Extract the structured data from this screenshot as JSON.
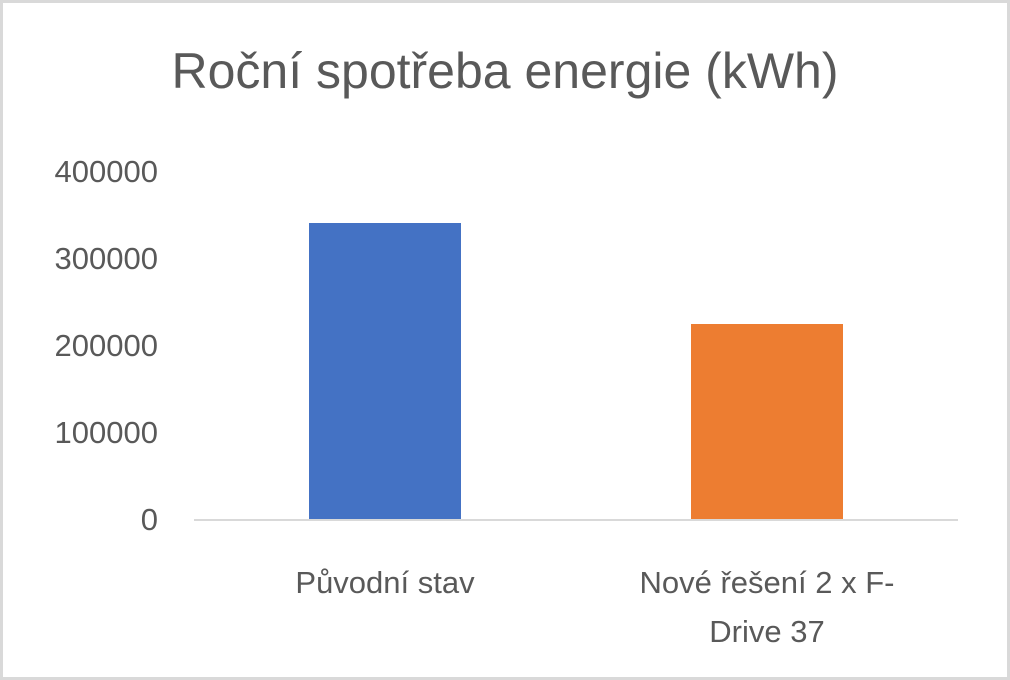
{
  "chart_data": {
    "type": "bar",
    "title": "Roční spotřeba energie (kWh)",
    "xlabel": "",
    "ylabel": "",
    "categories": [
      "Původní stav",
      "Nové řešení 2 x F-Drive 37"
    ],
    "category_label_lines": [
      [
        "Původní stav"
      ],
      [
        "Nové řešení 2 x F-",
        "Drive 37"
      ]
    ],
    "values": [
      341000,
      225000
    ],
    "colors": [
      "#4472c4",
      "#ed7d31"
    ],
    "ylim": [
      0,
      400000
    ],
    "yticks": [
      0,
      100000,
      200000,
      300000,
      400000
    ],
    "ytick_labels": [
      "0",
      "100000",
      "200000",
      "300000",
      "400000"
    ],
    "grid": false,
    "legend": "none"
  }
}
